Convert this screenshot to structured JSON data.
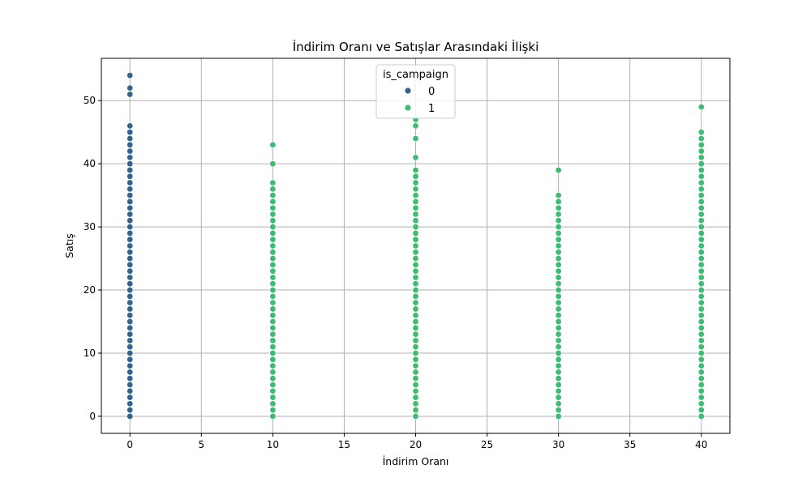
{
  "chart_data": {
    "type": "scatter",
    "title": "İndirim Oranı ve Satışlar Arasındaki İlişki",
    "xlabel": "İndirim Oranı",
    "ylabel": "Satış",
    "xlim": [
      -2,
      42
    ],
    "ylim": [
      -2.7,
      56.7
    ],
    "xticks": [
      0,
      5,
      10,
      15,
      20,
      25,
      30,
      35,
      40
    ],
    "yticks": [
      0,
      10,
      20,
      30,
      40,
      50
    ],
    "grid": true,
    "legend": {
      "title": "is_campaign",
      "placement": "top-center",
      "entries": [
        {
          "label": "0",
          "color": "#33638d"
        },
        {
          "label": "1",
          "color": "#3fbc73"
        }
      ]
    },
    "series": [
      {
        "name": "0",
        "color": "#33638d",
        "points": [
          [
            0,
            0
          ],
          [
            0,
            1
          ],
          [
            0,
            2
          ],
          [
            0,
            3
          ],
          [
            0,
            4
          ],
          [
            0,
            5
          ],
          [
            0,
            6
          ],
          [
            0,
            7
          ],
          [
            0,
            8
          ],
          [
            0,
            9
          ],
          [
            0,
            10
          ],
          [
            0,
            11
          ],
          [
            0,
            12
          ],
          [
            0,
            13
          ],
          [
            0,
            14
          ],
          [
            0,
            15
          ],
          [
            0,
            16
          ],
          [
            0,
            17
          ],
          [
            0,
            18
          ],
          [
            0,
            19
          ],
          [
            0,
            20
          ],
          [
            0,
            21
          ],
          [
            0,
            22
          ],
          [
            0,
            23
          ],
          [
            0,
            24
          ],
          [
            0,
            25
          ],
          [
            0,
            26
          ],
          [
            0,
            27
          ],
          [
            0,
            28
          ],
          [
            0,
            29
          ],
          [
            0,
            30
          ],
          [
            0,
            31
          ],
          [
            0,
            32
          ],
          [
            0,
            33
          ],
          [
            0,
            34
          ],
          [
            0,
            35
          ],
          [
            0,
            36
          ],
          [
            0,
            37
          ],
          [
            0,
            38
          ],
          [
            0,
            39
          ],
          [
            0,
            40
          ],
          [
            0,
            41
          ],
          [
            0,
            42
          ],
          [
            0,
            43
          ],
          [
            0,
            44
          ],
          [
            0,
            45
          ],
          [
            0,
            46
          ],
          [
            0,
            51
          ],
          [
            0,
            52
          ],
          [
            0,
            54
          ]
        ]
      },
      {
        "name": "1",
        "color": "#3fbc73",
        "points": [
          [
            10,
            0
          ],
          [
            10,
            1
          ],
          [
            10,
            2
          ],
          [
            10,
            3
          ],
          [
            10,
            4
          ],
          [
            10,
            5
          ],
          [
            10,
            6
          ],
          [
            10,
            7
          ],
          [
            10,
            8
          ],
          [
            10,
            9
          ],
          [
            10,
            10
          ],
          [
            10,
            11
          ],
          [
            10,
            12
          ],
          [
            10,
            13
          ],
          [
            10,
            14
          ],
          [
            10,
            15
          ],
          [
            10,
            16
          ],
          [
            10,
            17
          ],
          [
            10,
            18
          ],
          [
            10,
            19
          ],
          [
            10,
            20
          ],
          [
            10,
            21
          ],
          [
            10,
            22
          ],
          [
            10,
            23
          ],
          [
            10,
            24
          ],
          [
            10,
            25
          ],
          [
            10,
            26
          ],
          [
            10,
            27
          ],
          [
            10,
            28
          ],
          [
            10,
            29
          ],
          [
            10,
            30
          ],
          [
            10,
            31
          ],
          [
            10,
            32
          ],
          [
            10,
            33
          ],
          [
            10,
            34
          ],
          [
            10,
            35
          ],
          [
            10,
            36
          ],
          [
            10,
            37
          ],
          [
            10,
            40
          ],
          [
            10,
            43
          ],
          [
            20,
            0
          ],
          [
            20,
            1
          ],
          [
            20,
            2
          ],
          [
            20,
            3
          ],
          [
            20,
            4
          ],
          [
            20,
            5
          ],
          [
            20,
            6
          ],
          [
            20,
            7
          ],
          [
            20,
            8
          ],
          [
            20,
            9
          ],
          [
            20,
            10
          ],
          [
            20,
            11
          ],
          [
            20,
            12
          ],
          [
            20,
            13
          ],
          [
            20,
            14
          ],
          [
            20,
            15
          ],
          [
            20,
            16
          ],
          [
            20,
            17
          ],
          [
            20,
            18
          ],
          [
            20,
            19
          ],
          [
            20,
            20
          ],
          [
            20,
            21
          ],
          [
            20,
            22
          ],
          [
            20,
            23
          ],
          [
            20,
            24
          ],
          [
            20,
            25
          ],
          [
            20,
            26
          ],
          [
            20,
            27
          ],
          [
            20,
            28
          ],
          [
            20,
            29
          ],
          [
            20,
            30
          ],
          [
            20,
            31
          ],
          [
            20,
            32
          ],
          [
            20,
            33
          ],
          [
            20,
            34
          ],
          [
            20,
            35
          ],
          [
            20,
            36
          ],
          [
            20,
            37
          ],
          [
            20,
            38
          ],
          [
            20,
            39
          ],
          [
            20,
            41
          ],
          [
            20,
            44
          ],
          [
            20,
            46
          ],
          [
            20,
            47
          ],
          [
            30,
            0
          ],
          [
            30,
            1
          ],
          [
            30,
            2
          ],
          [
            30,
            3
          ],
          [
            30,
            4
          ],
          [
            30,
            5
          ],
          [
            30,
            6
          ],
          [
            30,
            7
          ],
          [
            30,
            8
          ],
          [
            30,
            9
          ],
          [
            30,
            10
          ],
          [
            30,
            11
          ],
          [
            30,
            12
          ],
          [
            30,
            13
          ],
          [
            30,
            14
          ],
          [
            30,
            15
          ],
          [
            30,
            16
          ],
          [
            30,
            17
          ],
          [
            30,
            18
          ],
          [
            30,
            19
          ],
          [
            30,
            20
          ],
          [
            30,
            21
          ],
          [
            30,
            22
          ],
          [
            30,
            23
          ],
          [
            30,
            24
          ],
          [
            30,
            25
          ],
          [
            30,
            26
          ],
          [
            30,
            27
          ],
          [
            30,
            28
          ],
          [
            30,
            29
          ],
          [
            30,
            30
          ],
          [
            30,
            31
          ],
          [
            30,
            32
          ],
          [
            30,
            33
          ],
          [
            30,
            34
          ],
          [
            30,
            35
          ],
          [
            30,
            39
          ],
          [
            40,
            0
          ],
          [
            40,
            1
          ],
          [
            40,
            2
          ],
          [
            40,
            3
          ],
          [
            40,
            4
          ],
          [
            40,
            5
          ],
          [
            40,
            6
          ],
          [
            40,
            7
          ],
          [
            40,
            8
          ],
          [
            40,
            9
          ],
          [
            40,
            10
          ],
          [
            40,
            11
          ],
          [
            40,
            12
          ],
          [
            40,
            13
          ],
          [
            40,
            14
          ],
          [
            40,
            15
          ],
          [
            40,
            16
          ],
          [
            40,
            17
          ],
          [
            40,
            18
          ],
          [
            40,
            19
          ],
          [
            40,
            20
          ],
          [
            40,
            21
          ],
          [
            40,
            22
          ],
          [
            40,
            23
          ],
          [
            40,
            24
          ],
          [
            40,
            25
          ],
          [
            40,
            26
          ],
          [
            40,
            27
          ],
          [
            40,
            28
          ],
          [
            40,
            29
          ],
          [
            40,
            30
          ],
          [
            40,
            31
          ],
          [
            40,
            32
          ],
          [
            40,
            33
          ],
          [
            40,
            34
          ],
          [
            40,
            35
          ],
          [
            40,
            36
          ],
          [
            40,
            37
          ],
          [
            40,
            38
          ],
          [
            40,
            39
          ],
          [
            40,
            40
          ],
          [
            40,
            41
          ],
          [
            40,
            42
          ],
          [
            40,
            43
          ],
          [
            40,
            44
          ],
          [
            40,
            45
          ],
          [
            40,
            49
          ]
        ]
      }
    ]
  }
}
